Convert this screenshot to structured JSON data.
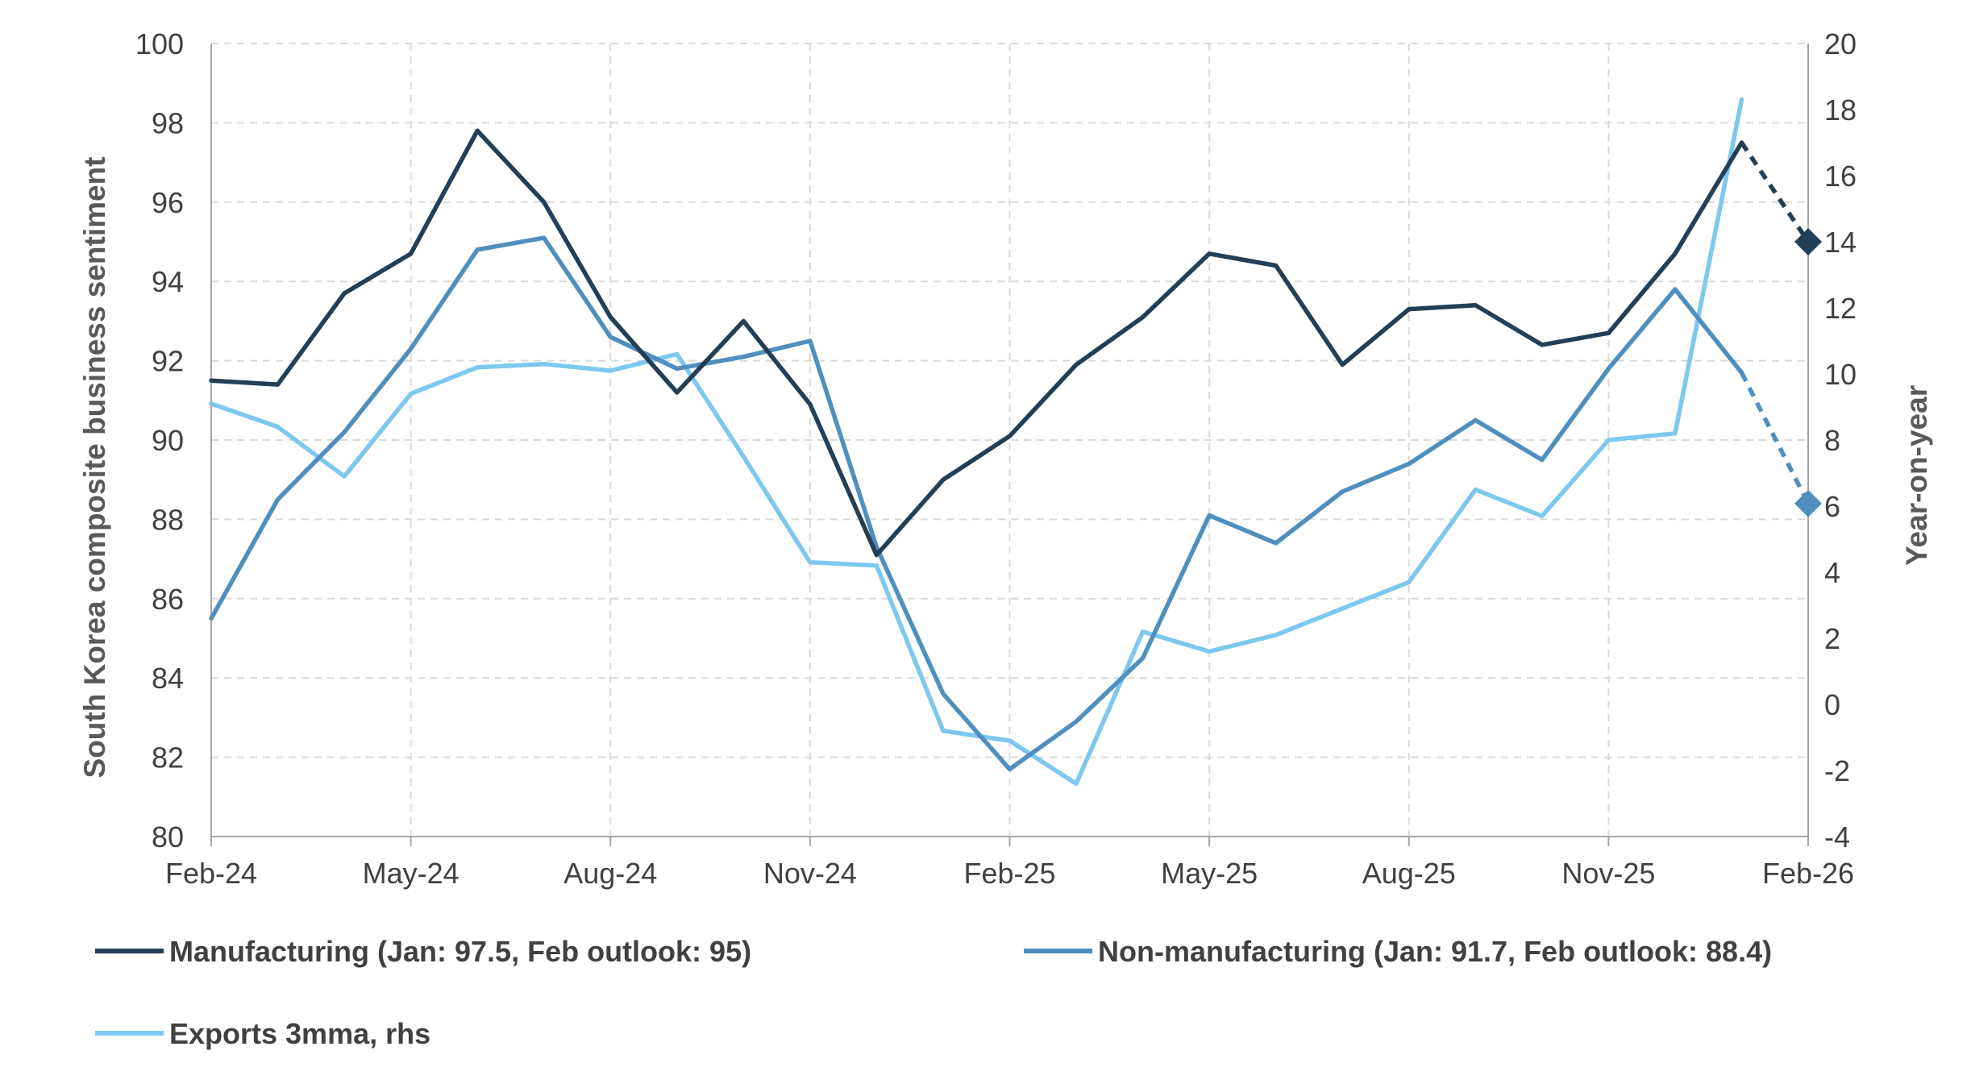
{
  "chart_data": {
    "type": "line",
    "title": "",
    "ylabel": "South Korea composite business sentiment",
    "y2label": "Year-on-year",
    "ylim": [
      80,
      100
    ],
    "y2lim": [
      -4,
      20
    ],
    "yticks": [
      "80",
      "82",
      "84",
      "86",
      "88",
      "90",
      "92",
      "94",
      "96",
      "98",
      "100"
    ],
    "y2ticks": [
      "-4",
      "-2",
      "0",
      "2",
      "4",
      "6",
      "8",
      "10",
      "12",
      "14",
      "16",
      "18",
      "20"
    ],
    "x_tick_labels": [
      "Feb-24",
      "May-24",
      "Aug-24",
      "Nov-24",
      "Feb-25",
      "May-25",
      "Aug-25",
      "Nov-25",
      "Feb-26"
    ],
    "x": [
      "Feb-24",
      "Mar-24",
      "Apr-24",
      "May-24",
      "Jun-24",
      "Jul-24",
      "Aug-24",
      "Sep-24",
      "Oct-24",
      "Nov-24",
      "Dec-24",
      "Jan-25",
      "Feb-25",
      "Mar-25",
      "Apr-25",
      "May-25",
      "Jun-25",
      "Jul-25",
      "Aug-25",
      "Sep-25",
      "Oct-25",
      "Nov-25",
      "Dec-25",
      "Jan-26",
      "Feb-26"
    ],
    "grid": true,
    "legend_position": "bottom",
    "series": [
      {
        "name": "Manufacturing (Jan: 97.5, Feb outlook: 95)",
        "axis": "left",
        "color": "#243f55",
        "values": [
          91.5,
          91.4,
          93.7,
          94.7,
          97.8,
          96.0,
          93.1,
          91.2,
          93.0,
          90.9,
          87.1,
          89.0,
          90.1,
          91.9,
          93.1,
          94.7,
          94.4,
          91.9,
          93.3,
          93.4,
          92.4,
          92.7,
          94.7,
          97.5,
          null
        ],
        "outlook": {
          "from": "Jan-26",
          "to": "Feb-26",
          "value": 95.0
        }
      },
      {
        "name": "Non-manufacturing (Jan: 91.7, Feb outlook: 88.4)",
        "axis": "left",
        "color": "#4f8fbe",
        "values": [
          85.5,
          88.5,
          90.2,
          92.3,
          94.8,
          95.1,
          92.6,
          91.8,
          92.1,
          92.5,
          87.3,
          83.6,
          81.7,
          82.9,
          84.5,
          88.1,
          87.4,
          88.7,
          89.4,
          90.5,
          89.5,
          91.8,
          93.8,
          91.7,
          null
        ],
        "outlook": {
          "from": "Jan-26",
          "to": "Feb-26",
          "value": 88.4
        }
      },
      {
        "name": "Exports 3mma, rhs",
        "axis": "right",
        "color": "#7dc8ef",
        "values": [
          9.1,
          8.4,
          6.9,
          9.4,
          10.2,
          10.3,
          10.1,
          10.6,
          7.5,
          4.3,
          4.2,
          -0.8,
          -1.1,
          -2.4,
          2.2,
          1.6,
          2.1,
          2.9,
          3.7,
          6.5,
          5.7,
          8.0,
          8.2,
          18.3,
          null
        ]
      }
    ]
  }
}
